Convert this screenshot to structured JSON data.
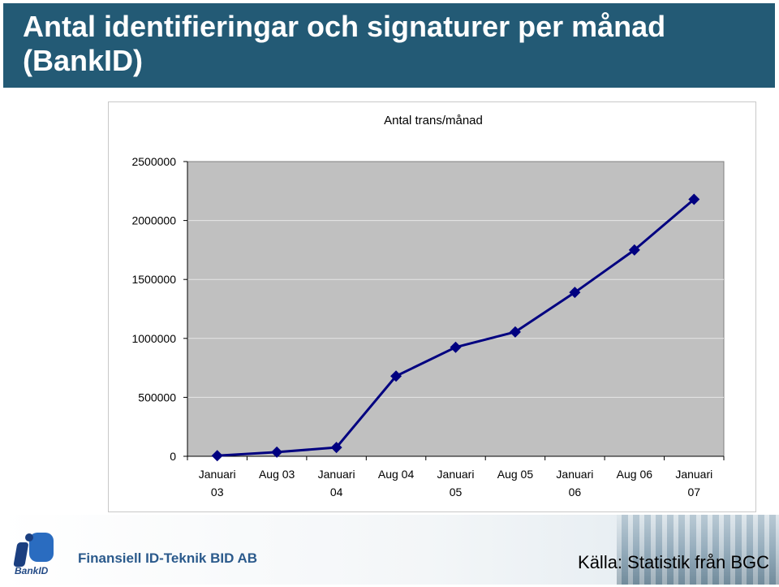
{
  "slide": {
    "title": "Antal identifieringar och signaturer per månad (BankID)",
    "company": "Finansiell ID-Teknik BID AB",
    "logo_text": "BankID",
    "source": "Källa: Statistik från BGC"
  },
  "colors": {
    "title_bg": "#235a75",
    "plot_bg": "#c0c0c0",
    "series_line": "#000080"
  },
  "chart_data": {
    "type": "line",
    "title": "Antal trans/månad",
    "xlabel": "",
    "ylabel": "",
    "categories": [
      "Januari 03",
      "Aug 03",
      "Januari 04",
      "Aug 04",
      "Januari 05",
      "Aug 05",
      "Januari 06",
      "Aug 06",
      "Januari 07"
    ],
    "series": [
      {
        "values": [
          5000,
          35000,
          75000,
          680000,
          925000,
          1055000,
          1390000,
          1750000,
          2180000
        ]
      }
    ],
    "ylim": [
      0,
      2500000
    ],
    "yticks": [
      0,
      500000,
      1000000,
      1500000,
      2000000,
      2500000
    ],
    "grid": true,
    "legend": "none"
  }
}
